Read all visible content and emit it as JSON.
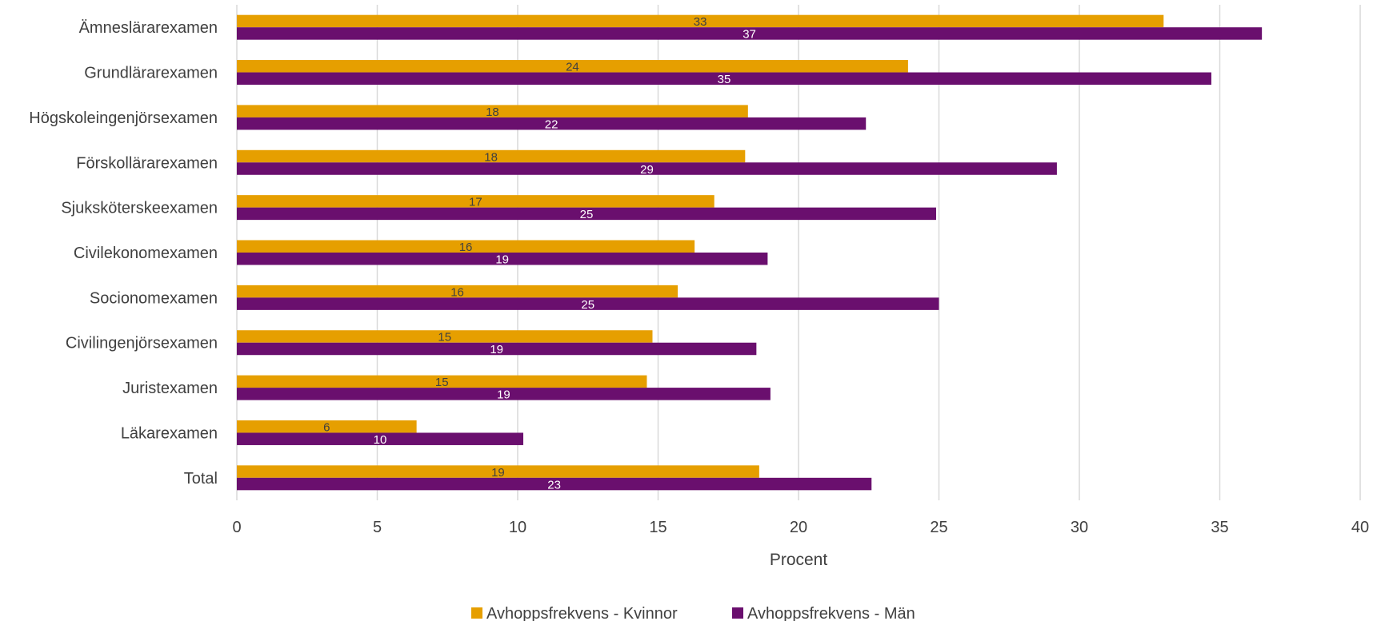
{
  "chart_data": {
    "type": "bar",
    "orientation": "horizontal",
    "categories": [
      "Ämneslärarexamen",
      "Grundlärarexamen",
      "Högskoleingenjörsexamen",
      "Förskollärarexamen",
      "Sjuksköterskeexamen",
      "Civilekonomexamen",
      "Socionomexamen",
      "Civilingenjörsexamen",
      "Juristexamen",
      "Läkarexamen",
      "Total"
    ],
    "series": [
      {
        "name": "Avhoppsfrekvens - Kvinnor",
        "color": "#e69f00",
        "label_color": "#404040",
        "values": [
          33.0,
          23.9,
          18.2,
          18.1,
          17.0,
          16.3,
          15.7,
          14.8,
          14.6,
          6.4,
          18.6
        ],
        "data_labels": [
          "33",
          "24",
          "18",
          "18",
          "17",
          "16",
          "16",
          "15",
          "15",
          "6",
          "19"
        ]
      },
      {
        "name": "Avhoppsfrekvens - Män",
        "color": "#6a0f6e",
        "label_color": "#ffffff",
        "values": [
          36.5,
          34.7,
          22.4,
          29.2,
          24.9,
          18.9,
          25.0,
          18.5,
          19.0,
          10.2,
          22.6
        ],
        "data_labels": [
          "37",
          "35",
          "22",
          "29",
          "25",
          "19",
          "25",
          "19",
          "19",
          "10",
          "23"
        ]
      }
    ],
    "xlabel": "Procent",
    "ylabel": "",
    "xlim": [
      0,
      40
    ],
    "xticks": [
      "0",
      "5",
      "10",
      "15",
      "20",
      "25",
      "30",
      "35",
      "40"
    ],
    "grid": "vertical",
    "legend_position": "bottom"
  }
}
